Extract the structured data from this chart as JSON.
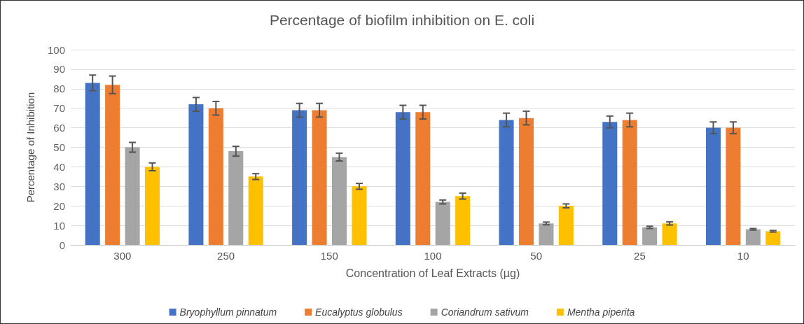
{
  "chart_data": {
    "type": "bar",
    "title": "Percentage of biofilm inhibition on E. coli",
    "xlabel": "Concentration of Leaf Extracts (µg)",
    "ylabel": "Percentage of Inhibition",
    "categories": [
      "300",
      "250",
      "150",
      "100",
      "50",
      "25",
      "10"
    ],
    "series": [
      {
        "name": "Bryophyllum pinnatum",
        "color": "#4472c4",
        "values": [
          83,
          72,
          69,
          68,
          64,
          63,
          60
        ],
        "errors": [
          4,
          3.5,
          3.5,
          3.5,
          3.5,
          3,
          3
        ]
      },
      {
        "name": "Eucalyptus globulus",
        "color": "#ed7d31",
        "values": [
          82,
          70,
          69,
          68,
          65,
          64,
          60
        ],
        "errors": [
          4.5,
          3.5,
          3.5,
          3.5,
          3.5,
          3.5,
          3
        ]
      },
      {
        "name": "Coriandrum sativum",
        "color": "#a5a5a5",
        "values": [
          50,
          48,
          45,
          22,
          11,
          9,
          8
        ],
        "errors": [
          2.5,
          2.5,
          2,
          1,
          0.7,
          0.6,
          0.4
        ]
      },
      {
        "name": "Mentha piperita",
        "color": "#ffc000",
        "values": [
          40,
          35,
          30,
          25,
          20,
          11,
          7
        ],
        "errors": [
          2,
          1.5,
          1.5,
          1.5,
          1,
          0.8,
          0.4
        ]
      }
    ],
    "ylim": [
      0,
      100
    ],
    "yticks": [
      0,
      10,
      20,
      30,
      40,
      50,
      60,
      70,
      80,
      90,
      100
    ],
    "grid": "y",
    "legend": "bottom"
  }
}
